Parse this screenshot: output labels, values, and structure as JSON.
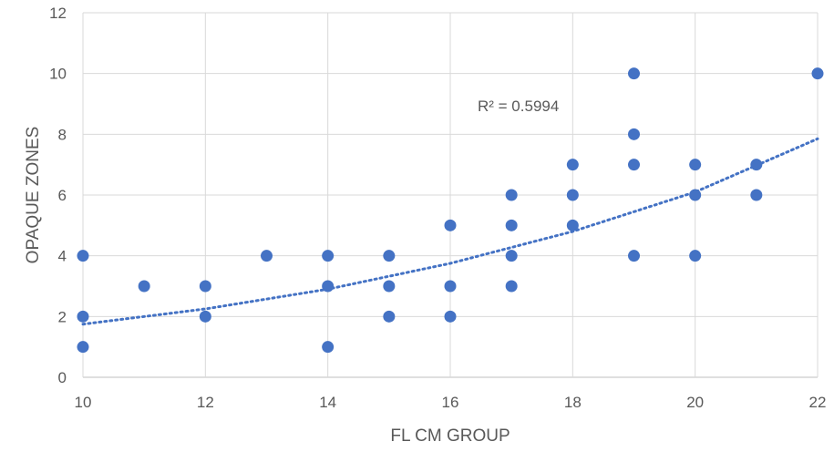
{
  "chart_data": {
    "type": "scatter",
    "title": "",
    "xlabel": "FL CM GROUP",
    "ylabel": "OPAQUE ZONES",
    "xlim": [
      10,
      22
    ],
    "ylim": [
      0,
      12
    ],
    "x_ticks": [
      10,
      12,
      14,
      16,
      18,
      20,
      22
    ],
    "y_ticks": [
      0,
      2,
      4,
      6,
      8,
      10,
      12
    ],
    "x_tick_labels": [
      "10",
      "12",
      "14",
      "16",
      "18",
      "20",
      "22"
    ],
    "y_tick_labels": [
      "0",
      "2",
      "4",
      "6",
      "8",
      "10",
      "12"
    ],
    "grid": true,
    "legend": "none",
    "marker_color": "#4472C4",
    "trendline": {
      "type": "exponential",
      "style": "dotted",
      "color": "#4472C4",
      "label": "R² = 0.5994",
      "points": [
        {
          "x": 10,
          "y": 1.75
        },
        {
          "x": 12,
          "y": 2.25
        },
        {
          "x": 14,
          "y": 2.9
        },
        {
          "x": 16,
          "y": 3.75
        },
        {
          "x": 18,
          "y": 4.8
        },
        {
          "x": 20,
          "y": 6.1
        },
        {
          "x": 22,
          "y": 7.85
        }
      ]
    },
    "points": [
      {
        "x": 10,
        "y": 4
      },
      {
        "x": 10,
        "y": 2
      },
      {
        "x": 10,
        "y": 1
      },
      {
        "x": 11,
        "y": 3
      },
      {
        "x": 12,
        "y": 3
      },
      {
        "x": 12,
        "y": 2
      },
      {
        "x": 13,
        "y": 4
      },
      {
        "x": 14,
        "y": 4
      },
      {
        "x": 14,
        "y": 3
      },
      {
        "x": 14,
        "y": 1
      },
      {
        "x": 15,
        "y": 4
      },
      {
        "x": 15,
        "y": 3
      },
      {
        "x": 15,
        "y": 2
      },
      {
        "x": 16,
        "y": 5
      },
      {
        "x": 16,
        "y": 3
      },
      {
        "x": 16,
        "y": 2
      },
      {
        "x": 17,
        "y": 6
      },
      {
        "x": 17,
        "y": 5
      },
      {
        "x": 17,
        "y": 4
      },
      {
        "x": 17,
        "y": 3
      },
      {
        "x": 18,
        "y": 7
      },
      {
        "x": 18,
        "y": 6
      },
      {
        "x": 18,
        "y": 5
      },
      {
        "x": 19,
        "y": 10
      },
      {
        "x": 19,
        "y": 8
      },
      {
        "x": 19,
        "y": 7
      },
      {
        "x": 19,
        "y": 4
      },
      {
        "x": 20,
        "y": 7
      },
      {
        "x": 20,
        "y": 6
      },
      {
        "x": 20,
        "y": 4
      },
      {
        "x": 21,
        "y": 7
      },
      {
        "x": 21,
        "y": 6
      },
      {
        "x": 22,
        "y": 10
      }
    ]
  }
}
